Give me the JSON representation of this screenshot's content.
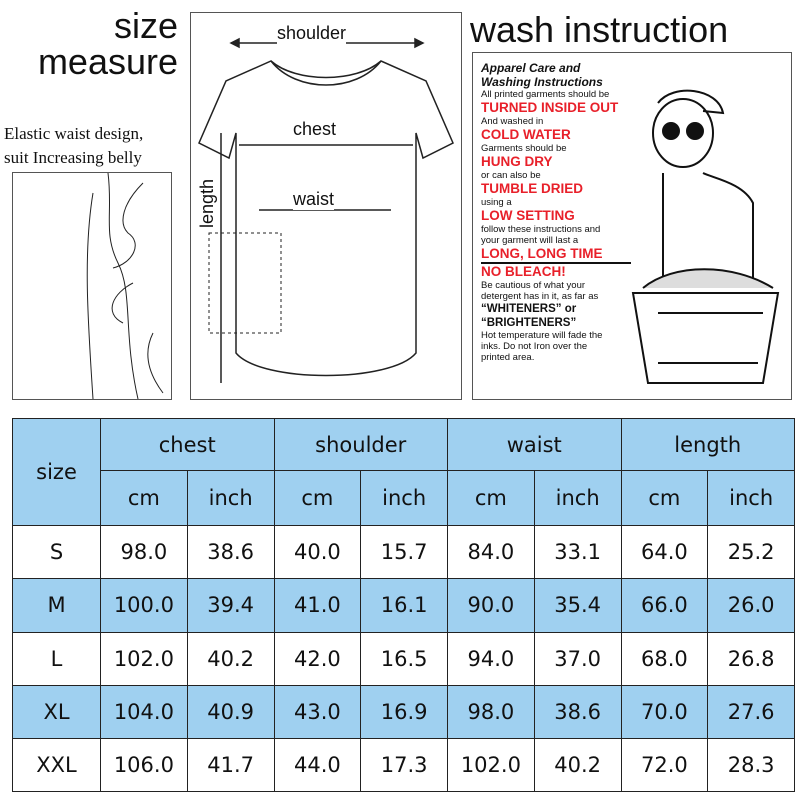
{
  "size_title": [
    "size",
    "measure"
  ],
  "elastic_note": [
    "Elastic waist design,",
    "suit Increasing belly"
  ],
  "diagram_labels": {
    "shoulder": "shoulder",
    "chest": "chest",
    "waist": "waist",
    "length": "length"
  },
  "wash_title": "wash instruction",
  "wash": {
    "heading": [
      "Apparel Care and",
      "Washing Instructions"
    ],
    "lines": [
      {
        "t": "All printed garments should be",
        "s": "n"
      },
      {
        "t": "TURNED INSIDE OUT",
        "s": "r"
      },
      {
        "t": "And washed in",
        "s": "n"
      },
      {
        "t": "COLD WATER",
        "s": "r"
      },
      {
        "t": "Garments should be",
        "s": "n"
      },
      {
        "t": "HUNG DRY",
        "s": "r"
      },
      {
        "t": "or can also be",
        "s": "n"
      },
      {
        "t": "TUMBLE DRIED",
        "s": "r"
      },
      {
        "t": "using a",
        "s": "n"
      },
      {
        "t": "LOW SETTING",
        "s": "r"
      },
      {
        "t": "follow these instructions and",
        "s": "n"
      },
      {
        "t": "your garment will last a",
        "s": "n"
      },
      {
        "t": "LONG, LONG TIME",
        "s": "r"
      },
      {
        "t": "NO BLEACH!",
        "s": "r"
      },
      {
        "t": "Be cautious of what your",
        "s": "n"
      },
      {
        "t": "detergent has in it, as far as",
        "s": "n"
      },
      {
        "t": "“WHITENERS” or",
        "s": "b"
      },
      {
        "t": "“BRIGHTENERS”",
        "s": "b"
      },
      {
        "t": "Hot temperature will fade the",
        "s": "n"
      },
      {
        "t": "inks. Do not Iron over the",
        "s": "n"
      },
      {
        "t": "printed area.",
        "s": "n"
      }
    ]
  },
  "table": {
    "size_header": "size",
    "groups": [
      "chest",
      "shoulder",
      "waist",
      "length"
    ],
    "units": [
      "cm",
      "inch"
    ],
    "rows": [
      [
        "S",
        "98.0",
        "38.6",
        "40.0",
        "15.7",
        "84.0",
        "33.1",
        "64.0",
        "25.2"
      ],
      [
        "M",
        "100.0",
        "39.4",
        "41.0",
        "16.1",
        "90.0",
        "35.4",
        "66.0",
        "26.0"
      ],
      [
        "L",
        "102.0",
        "40.2",
        "42.0",
        "16.5",
        "94.0",
        "37.0",
        "68.0",
        "26.8"
      ],
      [
        "XL",
        "104.0",
        "40.9",
        "43.0",
        "16.9",
        "98.0",
        "38.6",
        "70.0",
        "27.6"
      ],
      [
        "XXL",
        "106.0",
        "41.7",
        "44.0",
        "17.3",
        "102.0",
        "40.2",
        "72.0",
        "28.3"
      ]
    ]
  },
  "colors": {
    "header_blue": "#9fd0f0",
    "warning_red": "#e8202a"
  }
}
